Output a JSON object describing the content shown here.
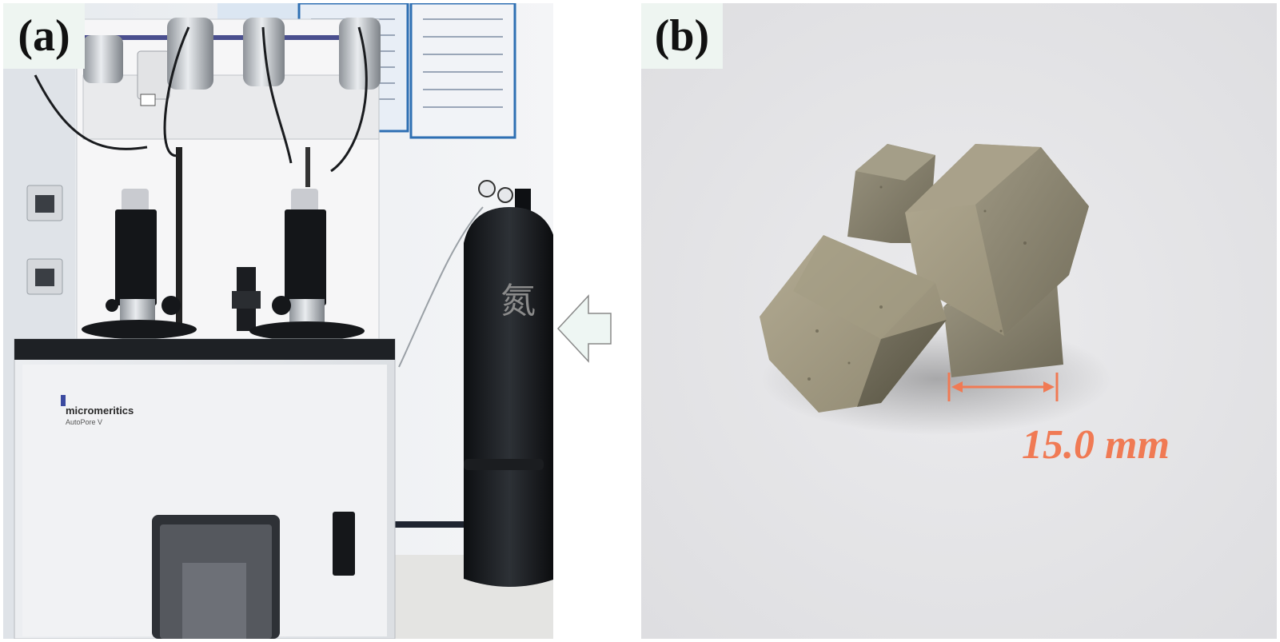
{
  "panel_a": {
    "label": "(a)",
    "brand_name": "micromeritics",
    "model_name": "AutoPore V",
    "cylinder_char": "氮"
  },
  "panel_b": {
    "label": "(b)",
    "measurement": "15.0 mm"
  },
  "colors": {
    "label_bg": "#eef5f1",
    "arrow_fill": "#eef6f3",
    "arrow_stroke": "#888888",
    "measure_accent": "#f07a54"
  }
}
